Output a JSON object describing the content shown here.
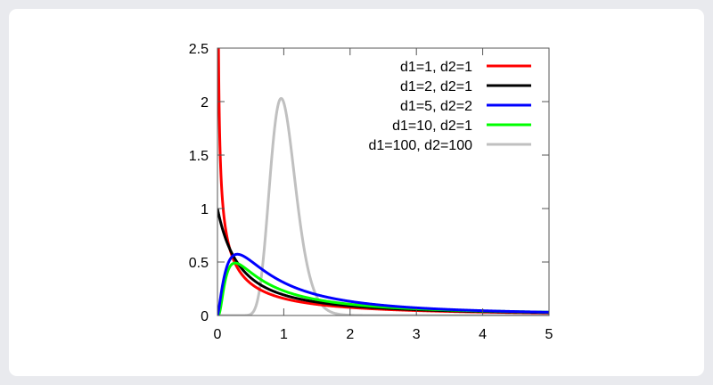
{
  "chart_data": {
    "type": "line",
    "title": "",
    "xlabel": "",
    "ylabel": "",
    "xlim": [
      0,
      5
    ],
    "ylim": [
      0,
      2.5
    ],
    "grid": false,
    "legend_position": "top-right inside",
    "x_ticks": [
      "0",
      "1",
      "2",
      "3",
      "4",
      "5"
    ],
    "y_ticks": [
      "0",
      "0.5",
      "1",
      "1.5",
      "2",
      "2.5"
    ],
    "x": [
      0.1,
      0.25,
      0.5,
      0.75,
      1.0,
      1.25,
      1.5,
      2.0,
      3.0,
      4.0,
      5.0
    ],
    "series": [
      {
        "name": "d1=1, d2=1",
        "color": "#ff0000",
        "d1": 1,
        "d2": 1,
        "values": [
          0.915,
          0.509,
          0.3,
          0.21,
          0.159,
          0.127,
          0.105,
          0.075,
          0.046,
          0.032,
          0.024
        ]
      },
      {
        "name": "d1=2, d2=1",
        "color": "#000000",
        "d1": 2,
        "d2": 1,
        "values": [
          0.751,
          0.572,
          0.385,
          0.283,
          0.222,
          0.182,
          0.154,
          0.117,
          0.07,
          0.048,
          0.036
        ]
      },
      {
        "name": "d1=5, d2=2",
        "color": "#0000ff",
        "d1": 5,
        "d2": 2,
        "values": [
          0.277,
          0.547,
          0.519,
          0.415,
          0.323,
          0.254,
          0.203,
          0.137,
          0.073,
          0.045,
          0.03
        ]
      },
      {
        "name": "d1=10, d2=1",
        "color": "#00ff00",
        "d1": 10,
        "d2": 1,
        "values": [
          0.08,
          0.438,
          0.464,
          0.349,
          0.263,
          0.204,
          0.163,
          0.113,
          0.065,
          0.043,
          0.032
        ]
      },
      {
        "name": "d1=100, d2=100",
        "color": "#c0c0c0",
        "d1": 100,
        "d2": 100,
        "values": [
          0.0,
          0.0,
          0.008,
          0.861,
          1.978,
          0.899,
          0.211,
          0.005,
          0.0,
          0.0,
          0.0
        ]
      }
    ]
  }
}
